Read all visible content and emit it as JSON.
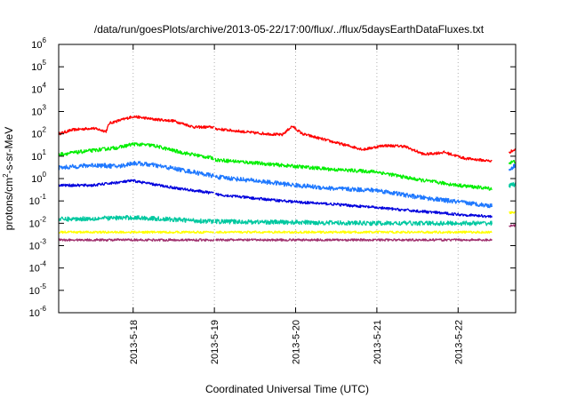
{
  "chart_data": {
    "type": "line",
    "title": "/data/run/goesPlots/archive/2013-05-22/17:00/flux/../flux/5daysEarthDataFluxes.txt",
    "xlabel": "Coordinated Universal Time (UTC)",
    "ylabel": {
      "base": "protons/cm",
      "sup": "2",
      "rest": "-s-sr-MeV"
    },
    "y_scale": "log",
    "ylim": [
      1e-06,
      1000000.0
    ],
    "y_ticks": [
      {
        "value": 1e-06,
        "base": "10",
        "exp": "-6"
      },
      {
        "value": 1e-05,
        "base": "10",
        "exp": "-5"
      },
      {
        "value": 0.0001,
        "base": "10",
        "exp": "-4"
      },
      {
        "value": 0.001,
        "base": "10",
        "exp": "-3"
      },
      {
        "value": 0.01,
        "base": "10",
        "exp": "-2"
      },
      {
        "value": 0.1,
        "base": "10",
        "exp": "-1"
      },
      {
        "value": 1,
        "base": "10",
        "exp": "0"
      },
      {
        "value": 10,
        "base": "10",
        "exp": "1"
      },
      {
        "value": 100,
        "base": "10",
        "exp": "2"
      },
      {
        "value": 1000,
        "base": "10",
        "exp": "3"
      },
      {
        "value": 10000,
        "base": "10",
        "exp": "4"
      },
      {
        "value": 100000,
        "base": "10",
        "exp": "5"
      },
      {
        "value": 1000000,
        "base": "10",
        "exp": "6"
      }
    ],
    "xlim": [
      "2013-05-17 02:00",
      "2013-05-22 17:00"
    ],
    "x_ticks": [
      "2013-5-18",
      "2013-5-19",
      "2013-5-20",
      "2013-5-21",
      "2013-5-22"
    ],
    "x_tick_dates": [
      "2013-05-18",
      "2013-05-19",
      "2013-05-20",
      "2013-05-21",
      "2013-05-22"
    ],
    "vertical_grid": "dotted, at x ticks",
    "horizontal_grid": false,
    "data_gaps": [
      [
        "2013-05-18 23:55",
        "2013-05-19 00:10"
      ],
      [
        "2013-05-22 10:00",
        "2013-05-22 15:00"
      ]
    ],
    "series": [
      {
        "color": "#ff0000",
        "noise_decades": 0.06,
        "points": [
          [
            "2013-05-17 02:00",
            100
          ],
          [
            "2013-05-17 06:00",
            150
          ],
          [
            "2013-05-17 12:00",
            180
          ],
          [
            "2013-05-17 16:00",
            130
          ],
          [
            "2013-05-17 17:00",
            300
          ],
          [
            "2013-05-17 20:00",
            400
          ],
          [
            "2013-05-18 00:00",
            600
          ],
          [
            "2013-05-18 06:00",
            450
          ],
          [
            "2013-05-18 12:00",
            380
          ],
          [
            "2013-05-18 18:00",
            200
          ],
          [
            "2013-05-18 23:55",
            200
          ],
          [
            "2013-05-19 00:10",
            170
          ],
          [
            "2013-05-19 12:00",
            110
          ],
          [
            "2013-05-19 20:00",
            90
          ],
          [
            "2013-05-19 23:00",
            220
          ],
          [
            "2013-05-20 02:00",
            100
          ],
          [
            "2013-05-20 12:00",
            40
          ],
          [
            "2013-05-20 20:00",
            20
          ],
          [
            "2013-05-21 02:00",
            30
          ],
          [
            "2013-05-21 08:00",
            28
          ],
          [
            "2013-05-21 14:00",
            12
          ],
          [
            "2013-05-21 20:00",
            15
          ],
          [
            "2013-05-22 02:00",
            8
          ],
          [
            "2013-05-22 10:00",
            6
          ],
          [
            "2013-05-22 15:00",
            15
          ],
          [
            "2013-05-22 17:00",
            20
          ]
        ]
      },
      {
        "color": "#00ee00",
        "noise_decades": 0.08,
        "points": [
          [
            "2013-05-17 02:00",
            12
          ],
          [
            "2013-05-17 12:00",
            18
          ],
          [
            "2013-05-17 20:00",
            25
          ],
          [
            "2013-05-18 00:00",
            35
          ],
          [
            "2013-05-18 06:00",
            30
          ],
          [
            "2013-05-18 14:00",
            15
          ],
          [
            "2013-05-18 23:55",
            8
          ],
          [
            "2013-05-19 00:10",
            7
          ],
          [
            "2013-05-19 12:00",
            5
          ],
          [
            "2013-05-20 00:00",
            3.5
          ],
          [
            "2013-05-20 12:00",
            2.5
          ],
          [
            "2013-05-21 00:00",
            2.0
          ],
          [
            "2013-05-21 12:00",
            0.9
          ],
          [
            "2013-05-22 00:00",
            0.5
          ],
          [
            "2013-05-22 10:00",
            0.35
          ],
          [
            "2013-05-22 15:00",
            5
          ],
          [
            "2013-05-22 17:00",
            6
          ]
        ]
      },
      {
        "color": "#1e78ff",
        "noise_decades": 0.1,
        "points": [
          [
            "2013-05-17 02:00",
            3
          ],
          [
            "2013-05-17 12:00",
            4
          ],
          [
            "2013-05-17 20:00",
            3.5
          ],
          [
            "2013-05-18 00:00",
            5
          ],
          [
            "2013-05-18 06:00",
            4
          ],
          [
            "2013-05-18 14:00",
            2.5
          ],
          [
            "2013-05-18 23:55",
            1.3
          ],
          [
            "2013-05-19 00:10",
            1.2
          ],
          [
            "2013-05-19 12:00",
            0.8
          ],
          [
            "2013-05-20 00:00",
            0.5
          ],
          [
            "2013-05-20 12:00",
            0.35
          ],
          [
            "2013-05-21 00:00",
            0.3
          ],
          [
            "2013-05-21 12:00",
            0.15
          ],
          [
            "2013-05-22 00:00",
            0.09
          ],
          [
            "2013-05-22 10:00",
            0.06
          ],
          [
            "2013-05-22 15:00",
            2.5
          ],
          [
            "2013-05-22 17:00",
            4
          ]
        ]
      },
      {
        "color": "#0000dd",
        "noise_decades": 0.06,
        "points": [
          [
            "2013-05-17 02:00",
            0.5
          ],
          [
            "2013-05-17 12:00",
            0.5
          ],
          [
            "2013-05-18 00:00",
            0.8
          ],
          [
            "2013-05-18 06:00",
            0.55
          ],
          [
            "2013-05-18 14:00",
            0.35
          ],
          [
            "2013-05-18 23:55",
            0.22
          ],
          [
            "2013-05-19 00:10",
            0.2
          ],
          [
            "2013-05-19 12:00",
            0.13
          ],
          [
            "2013-05-20 00:00",
            0.09
          ],
          [
            "2013-05-20 12:00",
            0.07
          ],
          [
            "2013-05-21 00:00",
            0.05
          ],
          [
            "2013-05-21 12:00",
            0.035
          ],
          [
            "2013-05-22 00:00",
            0.025
          ],
          [
            "2013-05-22 10:00",
            0.02
          ]
        ]
      },
      {
        "color": "#00c8a0",
        "noise_decades": 0.1,
        "points": [
          [
            "2013-05-17 02:00",
            0.015
          ],
          [
            "2013-05-18 00:00",
            0.018
          ],
          [
            "2013-05-18 23:55",
            0.012
          ],
          [
            "2013-05-19 00:10",
            0.012
          ],
          [
            "2013-05-20 00:00",
            0.011
          ],
          [
            "2013-05-21 00:00",
            0.01
          ],
          [
            "2013-05-22 10:00",
            0.01
          ],
          [
            "2013-05-22 15:00",
            0.5
          ],
          [
            "2013-05-22 17:00",
            0.55
          ]
        ]
      },
      {
        "color": "#ffff00",
        "noise_decades": 0.05,
        "points": [
          [
            "2013-05-17 02:00",
            0.004
          ],
          [
            "2013-05-18 23:55",
            0.004
          ],
          [
            "2013-05-19 00:10",
            0.004
          ],
          [
            "2013-05-22 10:00",
            0.004
          ],
          [
            "2013-05-22 15:00",
            0.03
          ],
          [
            "2013-05-22 17:00",
            0.03
          ]
        ]
      },
      {
        "color": "#a0306e",
        "noise_decades": 0.05,
        "points": [
          [
            "2013-05-17 02:00",
            0.0018
          ],
          [
            "2013-05-18 23:55",
            0.0018
          ],
          [
            "2013-05-19 00:10",
            0.0018
          ],
          [
            "2013-05-22 10:00",
            0.0018
          ],
          [
            "2013-05-22 15:00",
            0.008
          ],
          [
            "2013-05-22 17:00",
            0.008
          ]
        ]
      }
    ]
  }
}
